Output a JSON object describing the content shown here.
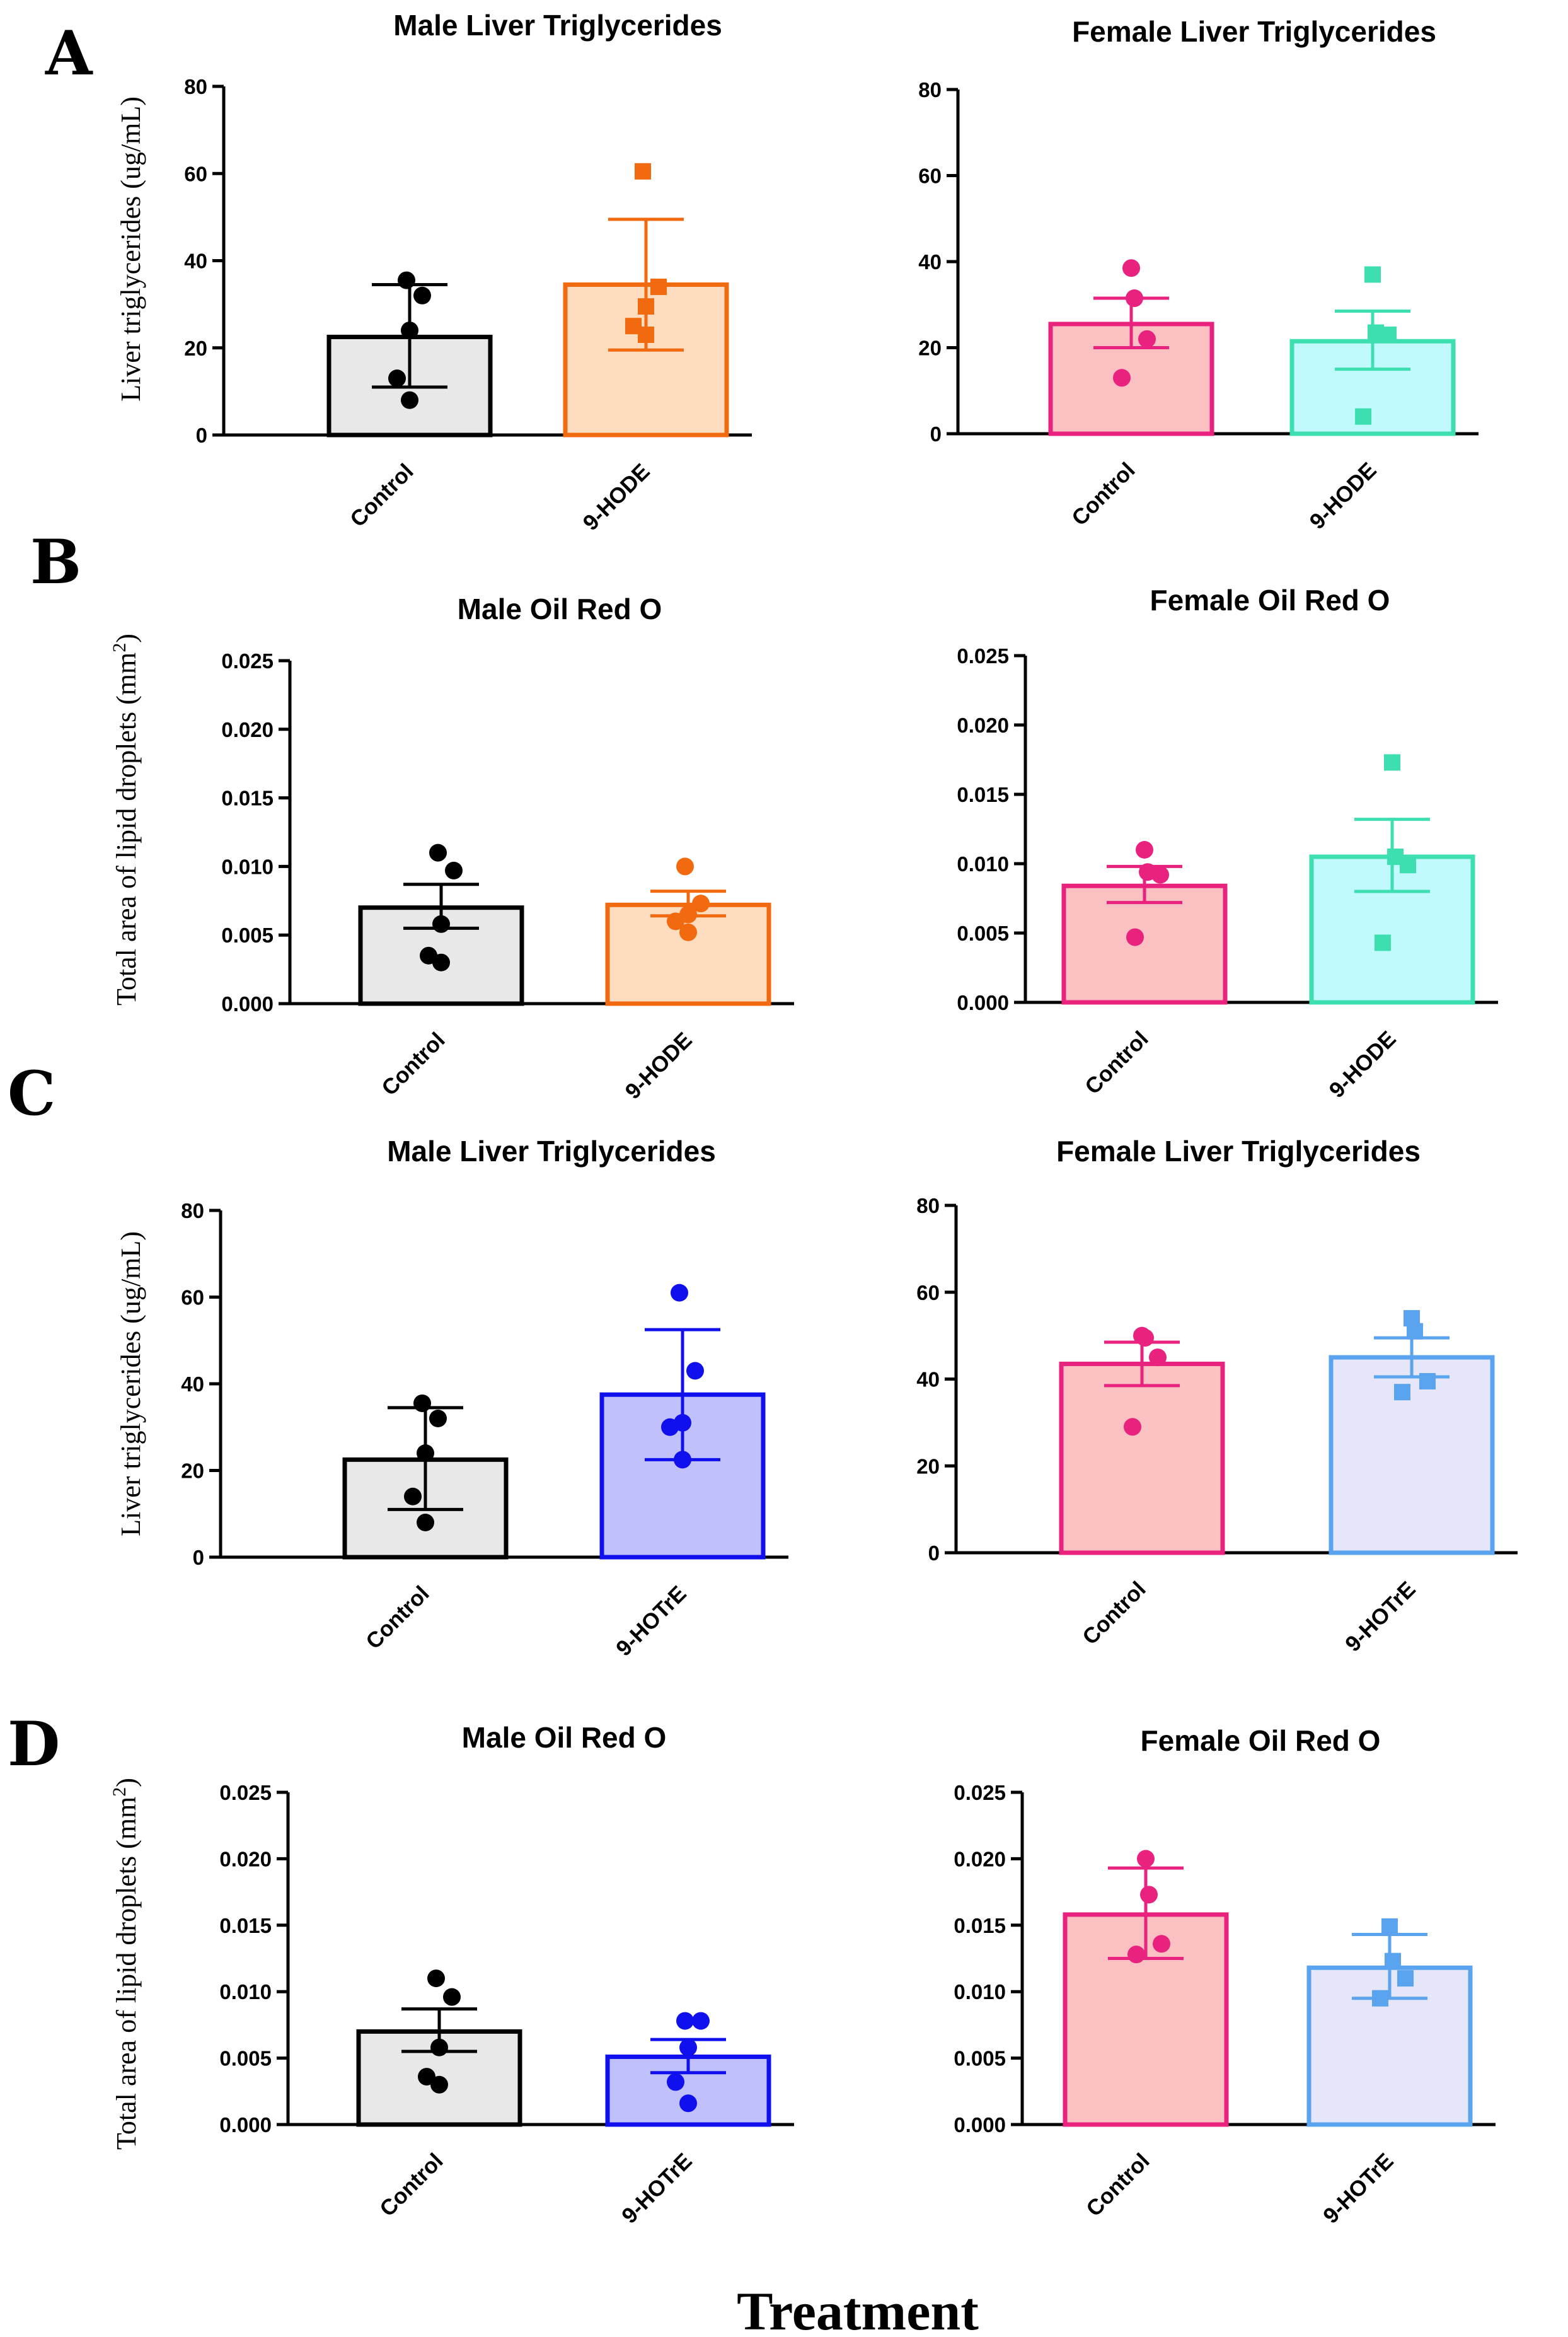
{
  "figure": {
    "xlabel": "Treatment",
    "panel_labels": [
      "A",
      "B",
      "C",
      "D"
    ],
    "ylabel_triglycerides": "Liver triglycerides (ug/mL)",
    "ylabel_area_prefix": "Total area of lipid droplets (mm",
    "ylabel_area_sup": "2",
    "ylabel_area_suffix": ")"
  },
  "chart_data": [
    {
      "id": "A-male",
      "panel": "A",
      "type": "bar",
      "title": "Male Liver Triglycerides",
      "ylim": [
        0,
        80
      ],
      "yticks": [
        0,
        20,
        40,
        60,
        80
      ],
      "tick_decimals": 0,
      "categories": [
        "Control",
        "9-HODE"
      ],
      "bars": [
        {
          "mean": 22.5,
          "err_low": 11,
          "err_high": 34.5,
          "marker": "circle",
          "color": "#000000",
          "fill": "#e8e8e8",
          "points": [
            35.5,
            32,
            24,
            13,
            8
          ]
        },
        {
          "mean": 34.5,
          "err_low": 19.5,
          "err_high": 49.5,
          "marker": "square",
          "color": "#f26a10",
          "fill": "#fddcc0",
          "points": [
            60.5,
            34,
            29.5,
            25,
            23
          ]
        }
      ]
    },
    {
      "id": "A-female",
      "panel": "A",
      "type": "bar",
      "title": "Female Liver Triglycerides",
      "ylim": [
        0,
        80
      ],
      "yticks": [
        0,
        20,
        40,
        60,
        80
      ],
      "tick_decimals": 0,
      "categories": [
        "Control",
        "9-HODE"
      ],
      "bars": [
        {
          "mean": 25.5,
          "err_low": 20,
          "err_high": 31.5,
          "marker": "circle",
          "color": "#e8227e",
          "fill": "#fbc0c2",
          "points": [
            38.5,
            31.5,
            22,
            13
          ]
        },
        {
          "mean": 21.5,
          "err_low": 15,
          "err_high": 28.5,
          "marker": "square",
          "color": "#3ddfb0",
          "fill": "#c0fafc",
          "points": [
            37,
            23.5,
            23,
            4
          ]
        }
      ]
    },
    {
      "id": "B-male",
      "panel": "B",
      "type": "bar",
      "title": "Male Oil Red O",
      "ylim": [
        0,
        0.025
      ],
      "yticks": [
        0,
        0.005,
        0.01,
        0.015,
        0.02,
        0.025
      ],
      "tick_decimals": 3,
      "categories": [
        "Control",
        "9-HODE"
      ],
      "bars": [
        {
          "mean": 0.007,
          "err_low": 0.0055,
          "err_high": 0.0087,
          "marker": "circle",
          "color": "#000000",
          "fill": "#e8e8e8",
          "points": [
            0.011,
            0.0097,
            0.0058,
            0.0035,
            0.003
          ]
        },
        {
          "mean": 0.0072,
          "err_low": 0.0064,
          "err_high": 0.0082,
          "marker": "circle",
          "color": "#f26a10",
          "fill": "#fddcc0",
          "points": [
            0.01,
            0.0073,
            0.0065,
            0.006,
            0.0052
          ]
        }
      ]
    },
    {
      "id": "B-female",
      "panel": "B",
      "type": "bar",
      "title": "Female Oil Red O",
      "ylim": [
        0,
        0.025
      ],
      "yticks": [
        0,
        0.005,
        0.01,
        0.015,
        0.02,
        0.025
      ],
      "tick_decimals": 3,
      "categories": [
        "Control",
        "9-HODE"
      ],
      "bars": [
        {
          "mean": 0.0084,
          "err_low": 0.0072,
          "err_high": 0.0098,
          "marker": "circle",
          "color": "#e8227e",
          "fill": "#fbc0c2",
          "points": [
            0.011,
            0.0094,
            0.0092,
            0.0047
          ]
        },
        {
          "mean": 0.0105,
          "err_low": 0.008,
          "err_high": 0.0132,
          "marker": "square",
          "color": "#3ddfb0",
          "fill": "#c0fafc",
          "points": [
            0.0173,
            0.0105,
            0.0099,
            0.0043
          ]
        }
      ]
    },
    {
      "id": "C-male",
      "panel": "C",
      "type": "bar",
      "title": "Male Liver Triglycerides",
      "ylim": [
        0,
        80
      ],
      "yticks": [
        0,
        20,
        40,
        60,
        80
      ],
      "tick_decimals": 0,
      "categories": [
        "Control",
        "9-HOTrE"
      ],
      "bars": [
        {
          "mean": 22.5,
          "err_low": 11,
          "err_high": 34.5,
          "marker": "circle",
          "color": "#000000",
          "fill": "#e8e8e8",
          "points": [
            35.5,
            32,
            24,
            14,
            8
          ]
        },
        {
          "mean": 37.5,
          "err_low": 22.5,
          "err_high": 52.5,
          "marker": "circle",
          "color": "#1010ee",
          "fill": "#c0c0fc",
          "points": [
            61,
            43,
            31,
            30,
            22.5
          ]
        }
      ]
    },
    {
      "id": "C-female",
      "panel": "C",
      "type": "bar",
      "title": "Female Liver Triglycerides",
      "ylim": [
        0,
        80
      ],
      "yticks": [
        0,
        20,
        40,
        60,
        80
      ],
      "tick_decimals": 0,
      "categories": [
        "Control",
        "9-HOTrE"
      ],
      "bars": [
        {
          "mean": 43.5,
          "err_low": 38.5,
          "err_high": 48.5,
          "marker": "circle",
          "color": "#e8227e",
          "fill": "#fbc0c2",
          "points": [
            50,
            49.5,
            45,
            29
          ]
        },
        {
          "mean": 45,
          "err_low": 40.5,
          "err_high": 49.5,
          "marker": "square",
          "color": "#5aa3ee",
          "fill": "#e6e6fb",
          "points": [
            54,
            51,
            39.5,
            37
          ]
        }
      ]
    },
    {
      "id": "D-male",
      "panel": "D",
      "type": "bar",
      "title": "Male Oil Red O",
      "ylim": [
        0,
        0.025
      ],
      "yticks": [
        0,
        0.005,
        0.01,
        0.015,
        0.02,
        0.025
      ],
      "tick_decimals": 3,
      "categories": [
        "Control",
        "9-HOTrE"
      ],
      "bars": [
        {
          "mean": 0.007,
          "err_low": 0.0055,
          "err_high": 0.0087,
          "marker": "circle",
          "color": "#000000",
          "fill": "#e8e8e8",
          "points": [
            0.011,
            0.0096,
            0.0058,
            0.0036,
            0.003
          ]
        },
        {
          "mean": 0.0051,
          "err_low": 0.0039,
          "err_high": 0.0064,
          "marker": "circle",
          "color": "#1010ee",
          "fill": "#c0c0fc",
          "points": [
            0.0078,
            0.0078,
            0.0058,
            0.0032,
            0.0016
          ]
        }
      ]
    },
    {
      "id": "D-female",
      "panel": "D",
      "type": "bar",
      "title": "Female Oil Red O",
      "ylim": [
        0,
        0.025
      ],
      "yticks": [
        0,
        0.005,
        0.01,
        0.015,
        0.02,
        0.025
      ],
      "tick_decimals": 3,
      "categories": [
        "Control",
        "9-HOTrE"
      ],
      "bars": [
        {
          "mean": 0.0158,
          "err_low": 0.0125,
          "err_high": 0.0193,
          "marker": "circle",
          "color": "#e8227e",
          "fill": "#fbc0c2",
          "points": [
            0.02,
            0.0173,
            0.0136,
            0.0128
          ]
        },
        {
          "mean": 0.0118,
          "err_low": 0.0095,
          "err_high": 0.0143,
          "marker": "square",
          "color": "#5aa3ee",
          "fill": "#e6e6fb",
          "points": [
            0.0149,
            0.0123,
            0.011,
            0.0095
          ]
        }
      ]
    }
  ]
}
